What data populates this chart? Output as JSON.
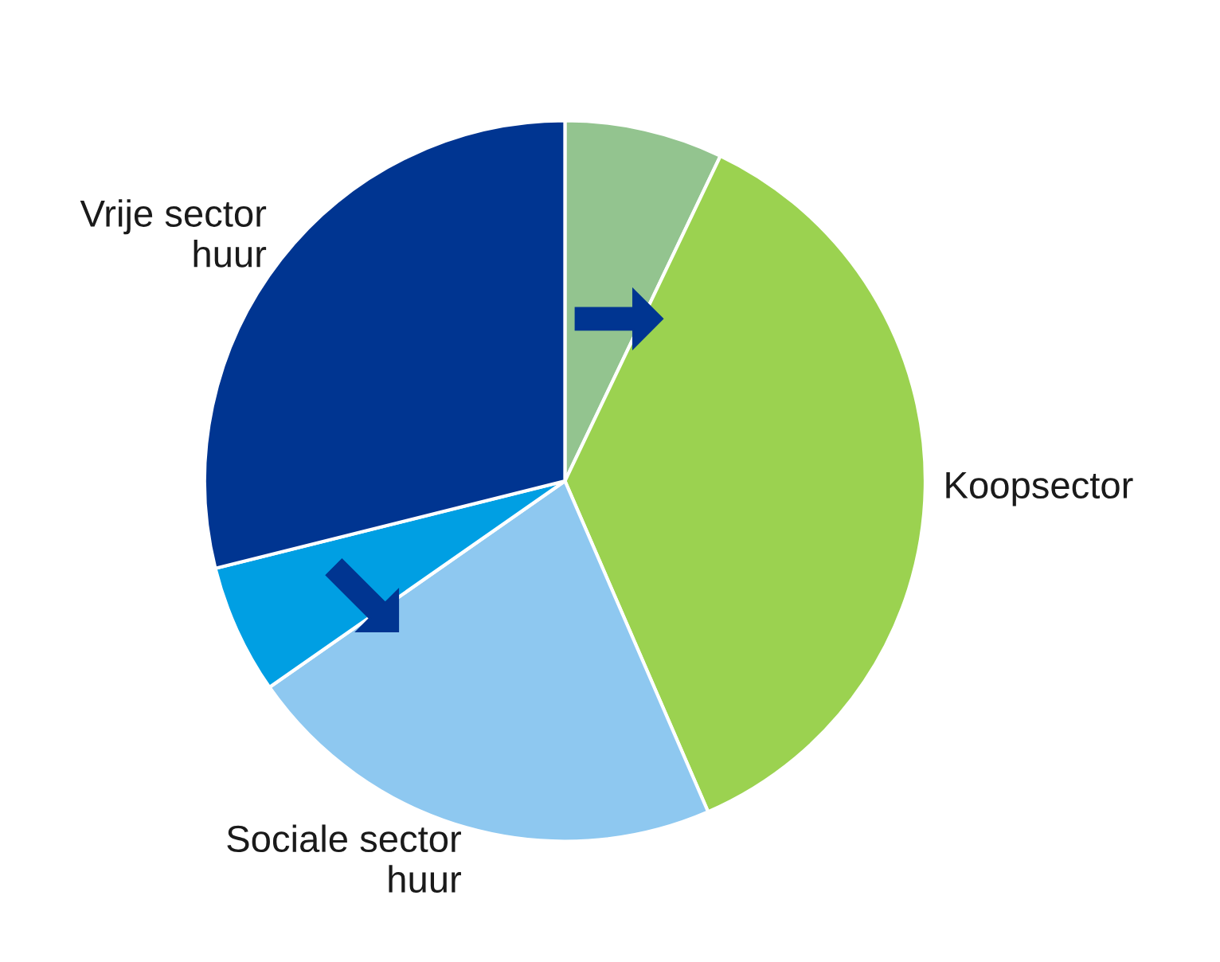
{
  "chart_data": {
    "type": "pie",
    "categories": [
      null,
      "Koopsector",
      "Sociale sector\nhuur",
      null,
      "Vrije sector\nhuur"
    ],
    "values": [
      7.1,
      36.4,
      21.8,
      5.8,
      28.9
    ],
    "colors": [
      "#93c48f",
      "#9bd250",
      "#8ec8f0",
      "#009fe3",
      "#003591"
    ]
  }
}
